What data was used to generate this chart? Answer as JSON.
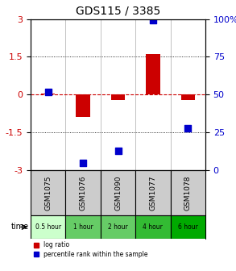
{
  "title": "GDS115 / 3385",
  "samples": [
    "GSM1075",
    "GSM1076",
    "GSM1090",
    "GSM1077",
    "GSM1078"
  ],
  "time_labels": [
    "0.5 hour",
    "1 hour",
    "2 hour",
    "4 hour",
    "6 hour"
  ],
  "time_colors": [
    "#ccffcc",
    "#66dd66",
    "#66dd66",
    "#33cc33",
    "#00bb00"
  ],
  "log_ratios": [
    0.05,
    -0.9,
    -0.2,
    1.6,
    -0.2
  ],
  "percentile_ranks": [
    52,
    5,
    13,
    99,
    28
  ],
  "log_ratio_color": "#cc0000",
  "percentile_color": "#0000cc",
  "ylim_left": [
    -3,
    3
  ],
  "ylim_right": [
    0,
    100
  ],
  "yticks_left": [
    -3,
    -1.5,
    0,
    1.5,
    3
  ],
  "yticks_right": [
    0,
    25,
    50,
    75,
    100
  ],
  "bar_width": 0.4,
  "dot_size": 40,
  "grid_color": "#000000",
  "zero_line_color": "#cc0000",
  "bg_color": "#ffffff",
  "sample_bg_color": "#cccccc",
  "time_label_light_green": "#ccffcc",
  "time_label_med_green": "#88dd88",
  "time_label_dark_green": "#44bb44"
}
